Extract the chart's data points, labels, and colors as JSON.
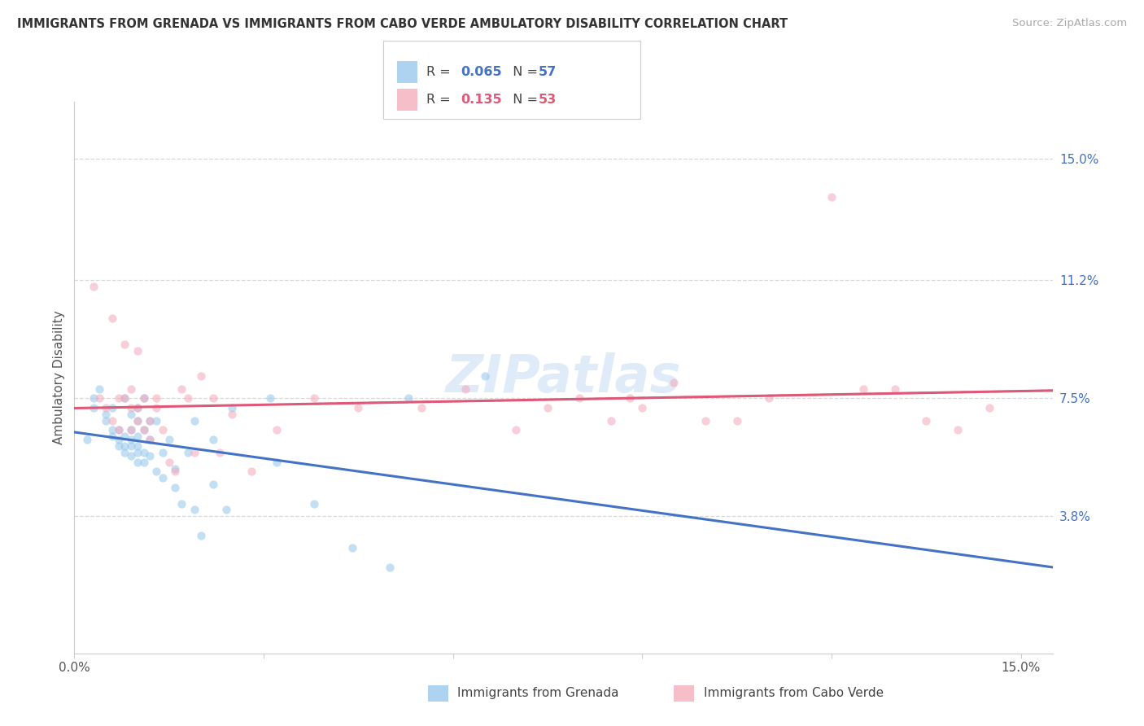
{
  "title": "IMMIGRANTS FROM GRENADA VS IMMIGRANTS FROM CABO VERDE AMBULATORY DISABILITY CORRELATION CHART",
  "source": "Source: ZipAtlas.com",
  "ylabel": "Ambulatory Disability",
  "ytick_vals": [
    0.0,
    0.038,
    0.075,
    0.112,
    0.15
  ],
  "ytick_labels": [
    "",
    "3.8%",
    "7.5%",
    "11.2%",
    "15.0%"
  ],
  "xtick_vals": [
    0.0,
    0.03,
    0.06,
    0.09,
    0.12,
    0.15
  ],
  "xtick_labels": [
    "0.0%",
    "",
    "",
    "",
    "",
    "15.0%"
  ],
  "xlim": [
    0.0,
    0.155
  ],
  "ylim": [
    -0.005,
    0.168
  ],
  "legend1_R": "0.065",
  "legend1_N": "57",
  "legend2_R": "0.135",
  "legend2_N": "53",
  "legend1_label": "Immigrants from Grenada",
  "legend2_label": "Immigrants from Cabo Verde",
  "blue_color": "#92c5eb",
  "pink_color": "#f4a8b8",
  "blue_line_color": "#4472c4",
  "pink_line_color": "#e05878",
  "r_n_blue_color": "#4472c4",
  "r_n_pink_color": "#e05878",
  "grid_color": "#d8d8d8",
  "watermark": "ZIPatlas",
  "blue_x": [
    0.002,
    0.003,
    0.003,
    0.004,
    0.005,
    0.005,
    0.006,
    0.006,
    0.006,
    0.007,
    0.007,
    0.007,
    0.008,
    0.008,
    0.008,
    0.008,
    0.009,
    0.009,
    0.009,
    0.009,
    0.009,
    0.01,
    0.01,
    0.01,
    0.01,
    0.01,
    0.01,
    0.011,
    0.011,
    0.011,
    0.011,
    0.012,
    0.012,
    0.012,
    0.013,
    0.013,
    0.014,
    0.014,
    0.015,
    0.016,
    0.016,
    0.017,
    0.018,
    0.019,
    0.019,
    0.02,
    0.022,
    0.022,
    0.024,
    0.025,
    0.031,
    0.032,
    0.038,
    0.044,
    0.05,
    0.053,
    0.065
  ],
  "blue_y": [
    0.062,
    0.072,
    0.075,
    0.078,
    0.068,
    0.07,
    0.063,
    0.065,
    0.072,
    0.06,
    0.062,
    0.065,
    0.058,
    0.06,
    0.063,
    0.075,
    0.057,
    0.06,
    0.062,
    0.065,
    0.07,
    0.055,
    0.058,
    0.06,
    0.063,
    0.068,
    0.072,
    0.055,
    0.058,
    0.065,
    0.075,
    0.057,
    0.062,
    0.068,
    0.052,
    0.068,
    0.05,
    0.058,
    0.062,
    0.047,
    0.053,
    0.042,
    0.058,
    0.04,
    0.068,
    0.032,
    0.048,
    0.062,
    0.04,
    0.072,
    0.075,
    0.055,
    0.042,
    0.028,
    0.022,
    0.075,
    0.082
  ],
  "pink_x": [
    0.003,
    0.004,
    0.005,
    0.006,
    0.006,
    0.007,
    0.007,
    0.008,
    0.008,
    0.009,
    0.009,
    0.009,
    0.01,
    0.01,
    0.01,
    0.011,
    0.011,
    0.012,
    0.012,
    0.013,
    0.013,
    0.014,
    0.015,
    0.016,
    0.017,
    0.018,
    0.019,
    0.02,
    0.022,
    0.023,
    0.025,
    0.028,
    0.032,
    0.038,
    0.045,
    0.055,
    0.062,
    0.07,
    0.075,
    0.08,
    0.085,
    0.088,
    0.09,
    0.095,
    0.1,
    0.105,
    0.11,
    0.12,
    0.125,
    0.13,
    0.135,
    0.14,
    0.145
  ],
  "pink_y": [
    0.11,
    0.075,
    0.072,
    0.068,
    0.1,
    0.065,
    0.075,
    0.075,
    0.092,
    0.065,
    0.072,
    0.078,
    0.068,
    0.072,
    0.09,
    0.065,
    0.075,
    0.062,
    0.068,
    0.072,
    0.075,
    0.065,
    0.055,
    0.052,
    0.078,
    0.075,
    0.058,
    0.082,
    0.075,
    0.058,
    0.07,
    0.052,
    0.065,
    0.075,
    0.072,
    0.072,
    0.078,
    0.065,
    0.072,
    0.075,
    0.068,
    0.075,
    0.072,
    0.08,
    0.068,
    0.068,
    0.075,
    0.138,
    0.078,
    0.078,
    0.068,
    0.065,
    0.072
  ]
}
